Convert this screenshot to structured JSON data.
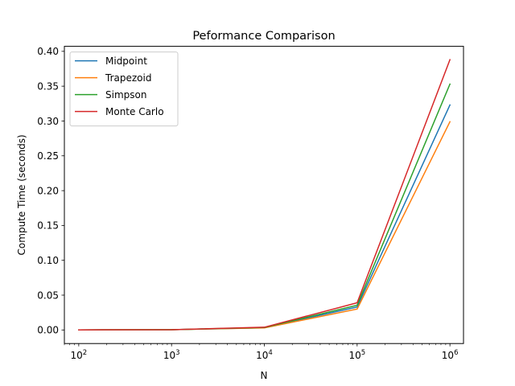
{
  "chart_data": {
    "type": "line",
    "title": "Peformance Comparison",
    "xlabel": "N",
    "ylabel": "Compute Time (seconds)",
    "xscale": "log",
    "xlim": [
      70,
      1400000
    ],
    "ylim": [
      -0.0195,
      0.4072
    ],
    "x": [
      100,
      1000,
      10000,
      100000,
      1000000
    ],
    "xticks": [
      {
        "value": 100,
        "base": "10",
        "exp": "2"
      },
      {
        "value": 1000,
        "base": "10",
        "exp": "3"
      },
      {
        "value": 10000,
        "base": "10",
        "exp": "4"
      },
      {
        "value": 100000,
        "base": "10",
        "exp": "5"
      },
      {
        "value": 1000000,
        "base": "10",
        "exp": "6"
      }
    ],
    "yticks": [
      {
        "value": 0.0,
        "label": "0.00"
      },
      {
        "value": 0.05,
        "label": "0.05"
      },
      {
        "value": 0.1,
        "label": "0.10"
      },
      {
        "value": 0.15,
        "label": "0.15"
      },
      {
        "value": 0.2,
        "label": "0.20"
      },
      {
        "value": 0.25,
        "label": "0.25"
      },
      {
        "value": 0.3,
        "label": "0.30"
      },
      {
        "value": 0.35,
        "label": "0.35"
      },
      {
        "value": 0.4,
        "label": "0.40"
      }
    ],
    "legend_position": "top-left",
    "series": [
      {
        "name": "Midpoint",
        "color": "#1f77b4",
        "values": [
          0.0001,
          0.0004,
          0.0033,
          0.033,
          0.323
        ]
      },
      {
        "name": "Trapezoid",
        "color": "#ff7f0e",
        "values": [
          0.0001,
          0.0004,
          0.003,
          0.03,
          0.299
        ]
      },
      {
        "name": "Simpson",
        "color": "#2ca02c",
        "values": [
          0.0001,
          0.0004,
          0.0035,
          0.0355,
          0.353
        ]
      },
      {
        "name": "Monte Carlo",
        "color": "#d62728",
        "values": [
          0.0001,
          0.0004,
          0.0039,
          0.039,
          0.388
        ]
      }
    ]
  }
}
